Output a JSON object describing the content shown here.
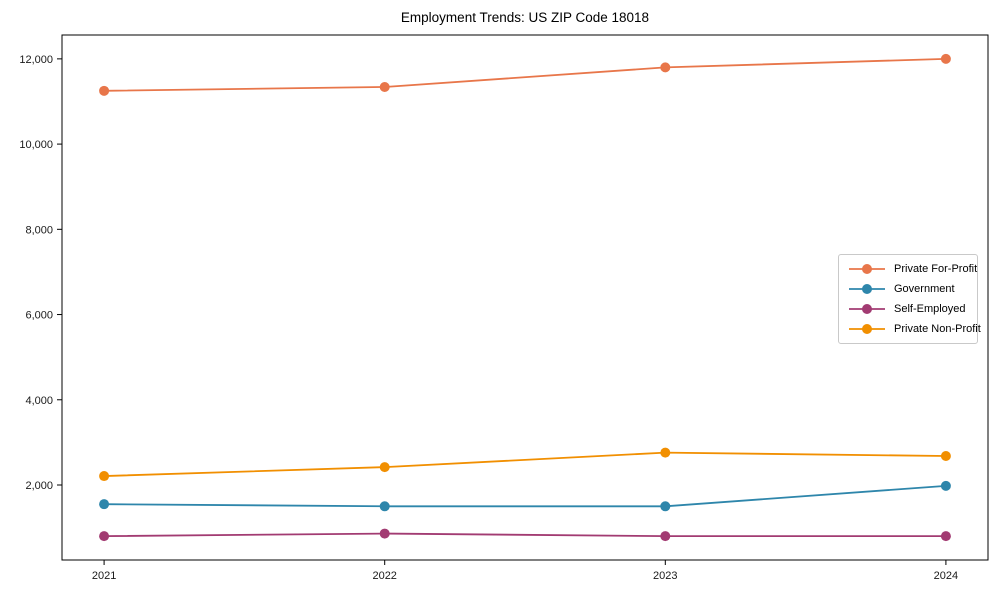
{
  "chart_data": {
    "type": "line",
    "title": "Employment Trends: US ZIP Code 18018",
    "xlabel": "",
    "ylabel": "",
    "x": [
      2021,
      2022,
      2023,
      2024
    ],
    "x_tick_labels": [
      "2021",
      "2022",
      "2023",
      "2024"
    ],
    "series": [
      {
        "name": "Private For-Profit",
        "color": "#E8764A",
        "values": [
          11250,
          11340,
          11800,
          12000
        ]
      },
      {
        "name": "Government",
        "color": "#2E86AB",
        "values": [
          1550,
          1500,
          1500,
          1980
        ]
      },
      {
        "name": "Self-Employed",
        "color": "#A23B72",
        "values": [
          800,
          860,
          800,
          800
        ]
      },
      {
        "name": "Private Non-Profit",
        "color": "#F18F01",
        "values": [
          2210,
          2420,
          2760,
          2680
        ]
      }
    ],
    "xlim": [
      2020.85,
      2024.15
    ],
    "ylim": [
      240,
      12560
    ],
    "yticks": [
      2000,
      4000,
      6000,
      8000,
      10000,
      12000
    ],
    "ytick_labels": [
      "2,000",
      "4,000",
      "6,000",
      "8,000",
      "10,000",
      "12,000"
    ],
    "grid": false,
    "legend_position": "center-right",
    "marker": "circle",
    "axis_color": "#000000",
    "tick_label_color": "#1a1a1a",
    "legend_border_color": "#c9c9c9"
  }
}
